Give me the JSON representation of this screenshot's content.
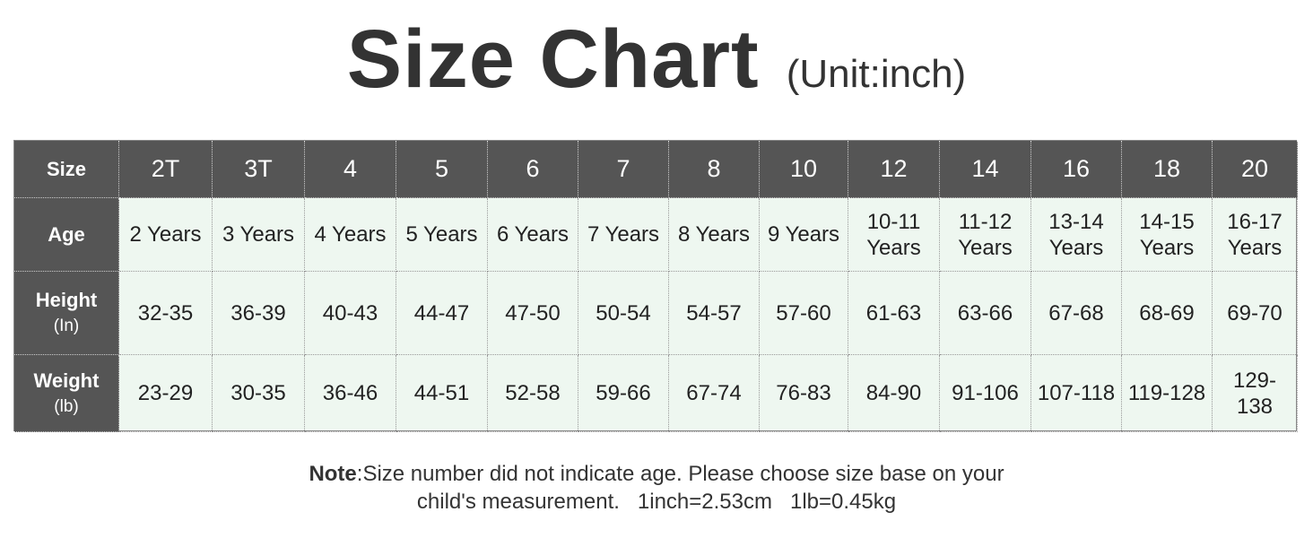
{
  "header": {
    "title": "Size Chart",
    "unit": "(Unit:inch)"
  },
  "table": {
    "columns": [
      "Size",
      "2T",
      "3T",
      "4",
      "5",
      "6",
      "7",
      "8",
      "10",
      "12",
      "14",
      "16",
      "18",
      "20"
    ],
    "rows": [
      {
        "label": "Age",
        "cells": [
          "2 Years",
          "3 Years",
          "4 Years",
          "5 Years",
          "6 Years",
          "7 Years",
          "8 Years",
          "9 Years",
          "10-11 Years",
          "11-12 Years",
          "13-14 Years",
          "14-15 Years",
          "16-17 Years"
        ]
      },
      {
        "label": "Height",
        "sub": "(In)",
        "cells": [
          "32-35",
          "36-39",
          "40-43",
          "44-47",
          "47-50",
          "50-54",
          "54-57",
          "57-60",
          "61-63",
          "63-66",
          "67-68",
          "68-69",
          "69-70"
        ]
      },
      {
        "label": "Weight",
        "sub": "(lb)",
        "cells": [
          "23-29",
          "30-35",
          "36-46",
          "44-51",
          "52-58",
          "59-66",
          "67-74",
          "76-83",
          "84-90",
          "91-106",
          "107-118",
          "119-128",
          "129-138"
        ]
      }
    ]
  },
  "note": {
    "label": "Note",
    "lines": [
      ":Size number did not indicate age. Please choose size base on your",
      "child's measurement.   1inch=2.53cm   1lb=0.45kg"
    ]
  }
}
